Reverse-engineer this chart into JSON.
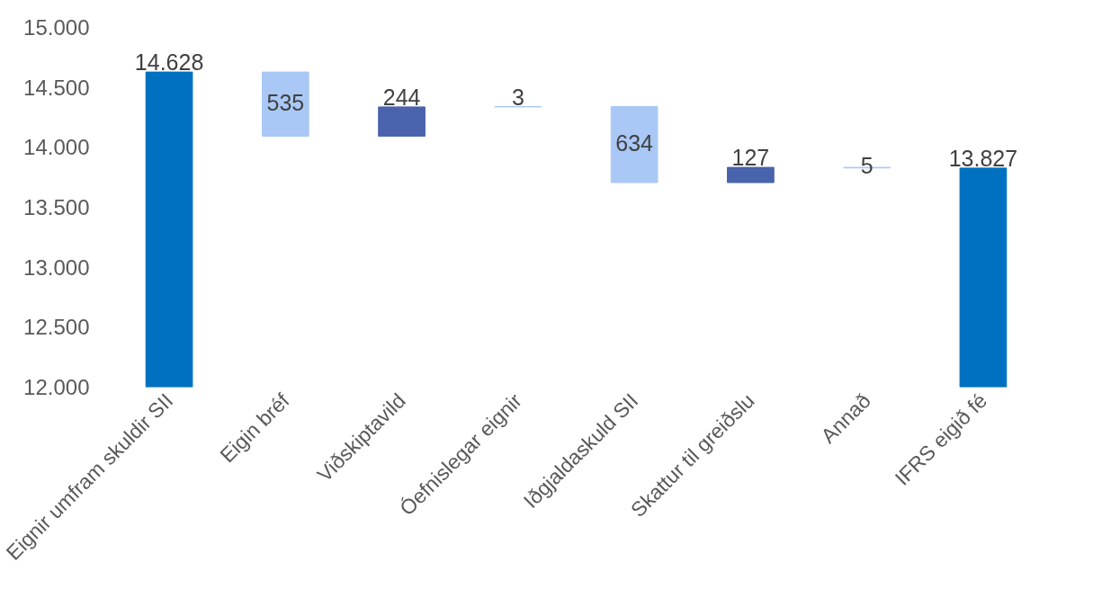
{
  "chart_data": {
    "type": "bar",
    "categories": [
      "Eignir umfram skuldir SII",
      "Eigin bréf",
      "Viðskiptavild",
      "Óefnislegar eignir",
      "Iðgjaldaskuld SII",
      "Skattur til greiðslu",
      "Annað",
      "IFRS eigið fé"
    ],
    "values": [
      14628,
      -535,
      244,
      3,
      -634,
      127,
      -5,
      13827
    ],
    "base": [
      0,
      14628,
      14093,
      14337,
      14340,
      13706,
      13833,
      0
    ],
    "colors": [
      "#0070c0",
      "#a9c8f5",
      "#4a63ad",
      "#a9c8f5",
      "#a9c8f5",
      "#4a63ad",
      "#a9c8f5",
      "#0070c0"
    ],
    "value_labels": [
      "14.628",
      "535",
      "244",
      "3",
      "634",
      "127",
      "5",
      "13.827"
    ],
    "ylim": [
      12000,
      15000
    ],
    "yticks": [
      {
        "value": 12000,
        "label": "12.000"
      },
      {
        "value": 12500,
        "label": "12.500"
      },
      {
        "value": 13000,
        "label": "13.000"
      },
      {
        "value": 13500,
        "label": "13.500"
      },
      {
        "value": 14000,
        "label": "14.000"
      },
      {
        "value": 14500,
        "label": "14.500"
      },
      {
        "value": 15000,
        "label": "15.000"
      }
    ],
    "grid": false
  }
}
